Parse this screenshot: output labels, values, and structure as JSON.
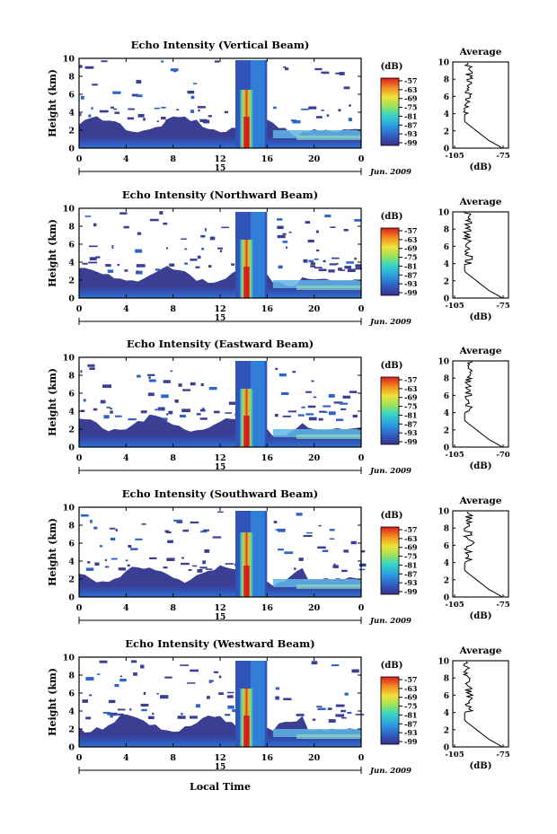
{
  "figure": {
    "date_label": "Jun. 2009",
    "date_marker": "15",
    "bottom_xlabel": "Local Time"
  },
  "chart_data": [
    {
      "type": "heatmap",
      "title": "Echo Intensity (Vertical Beam)",
      "ylabel": "Height (km)",
      "x_ticks": [
        "0",
        "4",
        "8",
        "12",
        "16",
        "20",
        "0"
      ],
      "y_ticks": [
        "0",
        "2",
        "4",
        "6",
        "8",
        "10"
      ],
      "xlim": [
        0,
        24
      ],
      "ylim": [
        0,
        10
      ],
      "colorbar": {
        "label": "(dB)",
        "ticks": [
          "-57",
          "-63",
          "-69",
          "-75",
          "-81",
          "-87",
          "-93",
          "-99"
        ]
      },
      "profile": {
        "title": "Average",
        "xlabel": "(dB)",
        "x_ticks": [
          "-105",
          "-75"
        ],
        "y_ticks": [
          "0",
          "2",
          "4",
          "6",
          "8",
          "10"
        ]
      }
    },
    {
      "type": "heatmap",
      "title": "Echo Intensity (Northward Beam)",
      "ylabel": "Height (km)",
      "x_ticks": [
        "0",
        "4",
        "8",
        "12",
        "16",
        "20",
        "0"
      ],
      "y_ticks": [
        "0",
        "2",
        "4",
        "6",
        "8",
        "10"
      ],
      "xlim": [
        0,
        24
      ],
      "ylim": [
        0,
        10
      ],
      "colorbar": {
        "label": "(dB)",
        "ticks": [
          "-57",
          "-63",
          "-69",
          "-75",
          "-81",
          "-87",
          "-93",
          "-99"
        ]
      },
      "profile": {
        "title": "Average",
        "xlabel": "(dB)",
        "x_ticks": [
          "-105",
          "-75"
        ],
        "y_ticks": [
          "0",
          "2",
          "4",
          "6",
          "8",
          "10"
        ]
      }
    },
    {
      "type": "heatmap",
      "title": "Echo Intensity (Eastward Beam)",
      "ylabel": "Height (km)",
      "x_ticks": [
        "0",
        "4",
        "8",
        "12",
        "16",
        "20",
        "0"
      ],
      "y_ticks": [
        "0",
        "2",
        "4",
        "6",
        "8",
        "10"
      ],
      "xlim": [
        0,
        24
      ],
      "ylim": [
        0,
        10
      ],
      "colorbar": {
        "label": "(dB)",
        "ticks": [
          "-57",
          "-63",
          "-69",
          "-75",
          "-81",
          "-87",
          "-93",
          "-99"
        ]
      },
      "profile": {
        "title": "Average",
        "xlabel": "(dB)",
        "x_ticks": [
          "-105",
          "-70"
        ],
        "y_ticks": [
          "0",
          "2",
          "4",
          "6",
          "8",
          "10"
        ]
      }
    },
    {
      "type": "heatmap",
      "title": "Echo Intensity (Southward Beam)",
      "ylabel": "Height (km)",
      "x_ticks": [
        "0",
        "4",
        "8",
        "12",
        "16",
        "20",
        "0"
      ],
      "y_ticks": [
        "0",
        "2",
        "4",
        "6",
        "8",
        "10"
      ],
      "xlim": [
        0,
        24
      ],
      "ylim": [
        0,
        10
      ],
      "colorbar": {
        "label": "(dB)",
        "ticks": [
          "-57",
          "-63",
          "-69",
          "-75",
          "-81",
          "-87",
          "-93",
          "-99"
        ]
      },
      "profile": {
        "title": "Average",
        "xlabel": "(dB)",
        "x_ticks": [
          "-105",
          "-75"
        ],
        "y_ticks": [
          "0",
          "2",
          "4",
          "6",
          "8",
          "10"
        ]
      }
    },
    {
      "type": "heatmap",
      "title": "Echo Intensity (Westward Beam)",
      "ylabel": "Height (km)",
      "x_ticks": [
        "0",
        "4",
        "8",
        "12",
        "16",
        "20",
        "0"
      ],
      "y_ticks": [
        "0",
        "2",
        "4",
        "6",
        "8",
        "10"
      ],
      "xlim": [
        0,
        24
      ],
      "ylim": [
        0,
        10
      ],
      "colorbar": {
        "label": "(dB)",
        "ticks": [
          "-57",
          "-63",
          "-69",
          "-75",
          "-81",
          "-87",
          "-93",
          "-99"
        ]
      },
      "profile": {
        "title": "Average",
        "xlabel": "(dB)",
        "x_ticks": [
          "-105",
          "-75"
        ],
        "y_ticks": [
          "0",
          "2",
          "4",
          "6",
          "8",
          "10"
        ]
      }
    }
  ]
}
